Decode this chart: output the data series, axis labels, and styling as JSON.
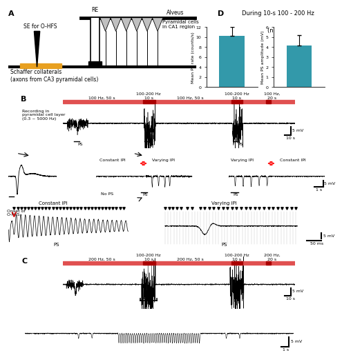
{
  "panel_A_label": "A",
  "panel_B_label": "B",
  "panel_C_label": "C",
  "panel_D_label": "D",
  "bar1_value": 10.3,
  "bar2_value": 4.2,
  "bar1_error": 1.8,
  "bar2_error": 1.0,
  "bar_color": "#3399AA",
  "bar1_ylabel": "Mean PS rate (counts/s)",
  "bar2_ylabel": "Mean PS amplitude (mV)",
  "bar1_ylim": [
    0,
    12
  ],
  "bar2_ylim": [
    0,
    6
  ],
  "D_title": "During 10-s 100 - 200 Hz",
  "D_subtitle": "(n = 8)",
  "bg_color": "#ffffff",
  "red_bar_color": "#e05050",
  "dark_red_color": "#aa0000",
  "freq_B": [
    "100 Hz, 50 s",
    "100-200 Hz\n10 s",
    "100 Hz, 50 s",
    "100-200 Hz\n10 s",
    "100 Hz,\n20 s"
  ],
  "freq_C": [
    "200 Hz, 50 s",
    "100-200 Hz\n10 s",
    "200 Hz, 50 s",
    "100-200 Hz\n10 s",
    "200 Hz,\n20 s"
  ]
}
